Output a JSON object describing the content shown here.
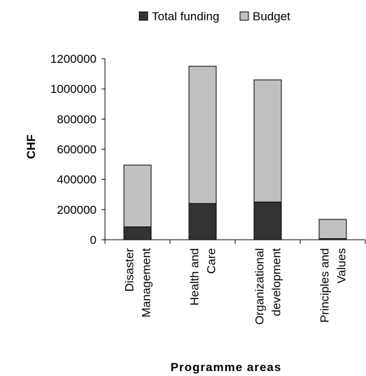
{
  "chart_data": {
    "type": "bar",
    "stacked": true,
    "categories": [
      [
        "Disaster",
        "Management"
      ],
      [
        "Health and",
        "Care"
      ],
      [
        "Organizational",
        "development"
      ],
      [
        "Principles and",
        "Values"
      ]
    ],
    "series": [
      {
        "name": "Total funding",
        "color": "#333333",
        "values": [
          85000,
          240000,
          250000,
          7000
        ]
      },
      {
        "name": "Budget",
        "color": "#c0c0c0",
        "values": [
          410000,
          910000,
          810000,
          128000
        ]
      }
    ],
    "xlabel": "Programme areas",
    "ylabel": "CHF",
    "ylim": [
      0,
      1200000
    ],
    "yticks": [
      "0",
      "200000",
      "400000",
      "600000",
      "800000",
      "1000000",
      "1200000"
    ],
    "legend_position": "top",
    "grid": false
  }
}
